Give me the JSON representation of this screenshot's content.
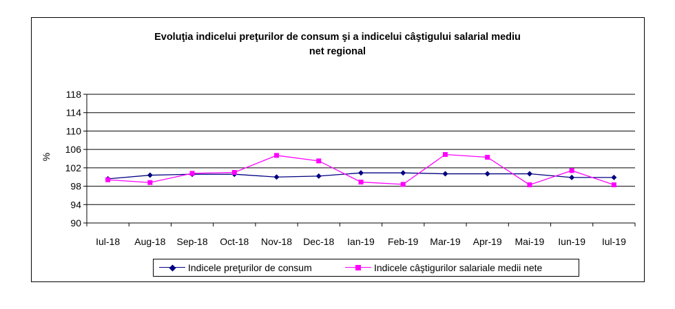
{
  "chart_data": {
    "type": "line",
    "title_lines": [
      "Evoluţia indicelui preţurilor de consum şi a indicelui câştigului salarial mediu",
      "net regional"
    ],
    "ylabel": "%",
    "ylim": [
      90,
      118
    ],
    "yticks": [
      90,
      94,
      98,
      102,
      106,
      110,
      114,
      118
    ],
    "grid": true,
    "legend_position": "bottom",
    "categories": [
      "Iul-18",
      "Aug-18",
      "Sep-18",
      "Oct-18",
      "Nov-18",
      "Dec-18",
      "Ian-19",
      "Feb-19",
      "Mar-19",
      "Apr-19",
      "Mai-19",
      "Iun-19",
      "Iul-19"
    ],
    "series": [
      {
        "name": "Indicele preţurilor de consum",
        "color": "#000080",
        "marker": "diamond",
        "values": [
          99.6,
          100.4,
          100.6,
          100.6,
          100.0,
          100.2,
          100.9,
          100.9,
          100.7,
          100.7,
          100.7,
          99.9,
          99.9
        ]
      },
      {
        "name": "Indicele câştigurilor salariale medii nete",
        "color": "#ff00ff",
        "marker": "square",
        "values": [
          99.4,
          98.8,
          100.8,
          101.0,
          104.7,
          103.5,
          98.9,
          98.4,
          104.9,
          104.3,
          98.3,
          101.4,
          98.3
        ]
      }
    ]
  }
}
